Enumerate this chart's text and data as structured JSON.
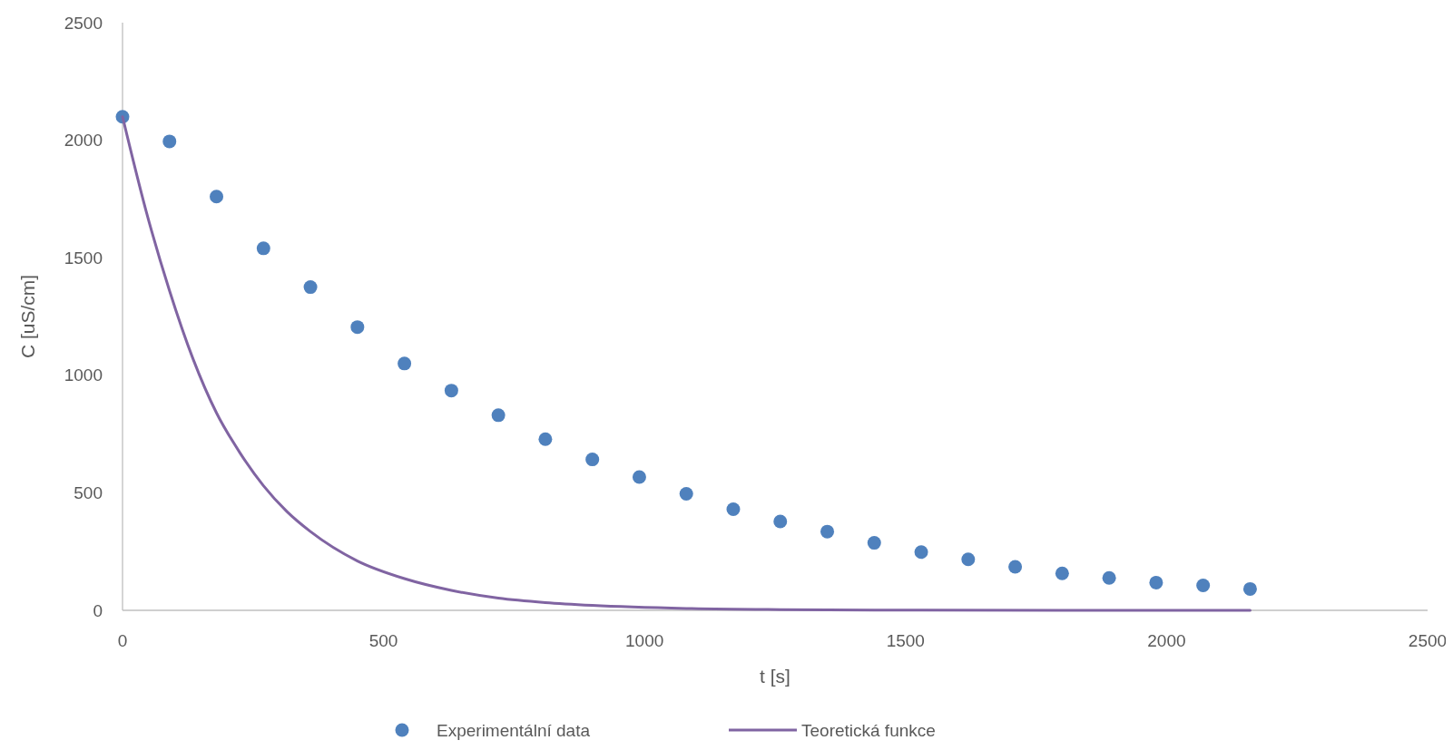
{
  "chart_data": {
    "type": "scatter",
    "xlabel": "t [s]",
    "ylabel": "C [uS/cm]",
    "xlim": [
      0,
      2500
    ],
    "ylim": [
      0,
      2500
    ],
    "xticks": [
      0,
      500,
      1000,
      1500,
      2000,
      2500
    ],
    "yticks": [
      0,
      500,
      1000,
      1500,
      2000,
      2500
    ],
    "grid": false,
    "legend": "bottom",
    "series": [
      {
        "name": "Experimentální data",
        "color": "#4f81bd",
        "marker": "circle",
        "x": [
          0,
          90,
          180,
          270,
          360,
          450,
          540,
          630,
          720,
          810,
          900,
          990,
          1080,
          1170,
          1260,
          1350,
          1440,
          1530,
          1620,
          1710,
          1800,
          1890,
          1980,
          2070,
          2160
        ],
        "values": [
          2100,
          1995,
          1760,
          1540,
          1375,
          1205,
          1050,
          935,
          830,
          728,
          642,
          567,
          496,
          430,
          378,
          335,
          287,
          248,
          217,
          185,
          157,
          138,
          118,
          106,
          91
        ]
      },
      {
        "name": "Teoretická funkce",
        "type": "line",
        "color": "#8064a2",
        "marker": "none",
        "line_style": "solid",
        "x": [
          0,
          45,
          90,
          135,
          180,
          225,
          270,
          315,
          360,
          450,
          540,
          630,
          720,
          810,
          900,
          1080,
          1260,
          1440,
          1800,
          2160
        ],
        "values": [
          2100,
          1700,
          1360,
          1070,
          840,
          670,
          530,
          420,
          335,
          210,
          135,
          85,
          52,
          33,
          21,
          8,
          3,
          1,
          0,
          0
        ]
      }
    ]
  }
}
